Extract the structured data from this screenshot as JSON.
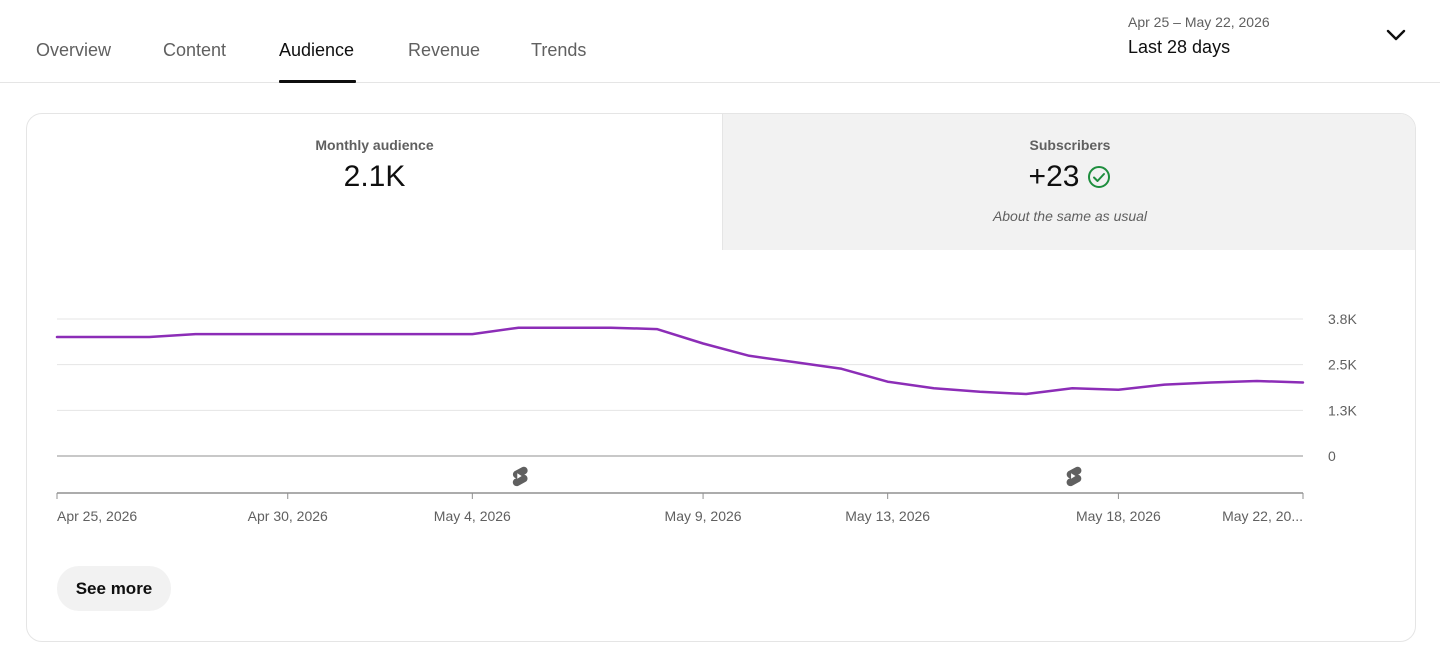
{
  "tabs": [
    {
      "label": "Overview",
      "active": false
    },
    {
      "label": "Content",
      "active": false
    },
    {
      "label": "Audience",
      "active": true
    },
    {
      "label": "Revenue",
      "active": false
    },
    {
      "label": "Trends",
      "active": false
    }
  ],
  "date_range": {
    "range_text": "Apr 25 – May 22, 2026",
    "label": "Last 28 days",
    "icon": "chevron-down-icon"
  },
  "metrics": {
    "monthly_audience": {
      "label": "Monthly audience",
      "value": "2.1K"
    },
    "subscribers": {
      "label": "Subscribers",
      "value": "+23",
      "note": "About the same as usual",
      "status_icon": "check-circle-icon",
      "status_color": "#1e8e3e"
    }
  },
  "colors": {
    "line": "#8c2db7",
    "grid": "#e5e5e5",
    "axis": "#909090",
    "tab_active": "#0f0f0f",
    "text_secondary": "#606060"
  },
  "chart_data": {
    "type": "line",
    "x": [
      "Apr 25, 2026",
      "Apr 27, 2026",
      "Apr 28, 2026",
      "Apr 29, 2026",
      "Apr 30, 2026",
      "May 1, 2026",
      "May 2, 2026",
      "May 3, 2026",
      "May 4, 2026",
      "May 5, 2026",
      "May 6, 2026",
      "May 7, 2026",
      "May 8, 2026",
      "May 9, 2026",
      "May 10, 2026",
      "May 11, 2026",
      "May 12, 2026",
      "May 13, 2026",
      "May 14, 2026",
      "May 15, 2026",
      "May 16, 2026",
      "May 17, 2026",
      "May 18, 2026",
      "May 19, 2026",
      "May 20, 2026",
      "May 21, 2026",
      "May 22, 2026"
    ],
    "series": [
      {
        "values": [
          3300,
          3300,
          3380,
          3380,
          3380,
          3380,
          3380,
          3380,
          3380,
          3560,
          3560,
          3560,
          3520,
          3120,
          2780,
          2600,
          2420,
          2060,
          1880,
          1780,
          1720,
          1880,
          1840,
          1980,
          2040,
          2080,
          2040
        ]
      }
    ],
    "y_ticks": [
      "3.8K",
      "2.5K",
      "1.3K",
      "0"
    ],
    "ylim": [
      0,
      3800
    ],
    "x_tick_labels": [
      "Apr 25, 2026",
      "Apr 30, 2026",
      "May 4, 2026",
      "May 9, 2026",
      "May 13, 2026",
      "May 18, 2026",
      "May 22, 20..."
    ],
    "markers": [
      {
        "date": "May 5, 2026",
        "icon": "shorts-icon"
      },
      {
        "date": "May 17, 2026",
        "icon": "shorts-icon"
      }
    ],
    "title": "",
    "xlabel": "",
    "ylabel": "",
    "grid": true
  },
  "see_more": {
    "label": "See more"
  }
}
